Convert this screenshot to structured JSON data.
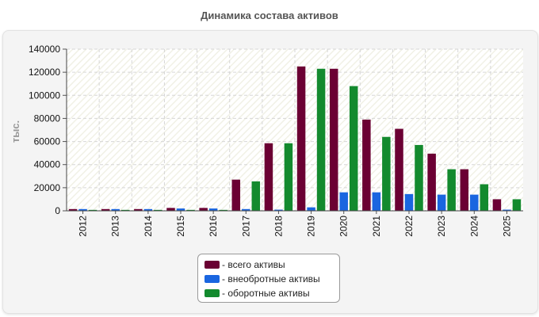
{
  "chart_data": {
    "type": "bar",
    "title": "Динамика состава активов",
    "ylabel": "тыс.",
    "xlabel": "",
    "ylim": [
      0,
      140000
    ],
    "yticks": [
      "0",
      "20000",
      "40000",
      "60000",
      "80000",
      "100000",
      "120000",
      "140000"
    ],
    "categories": [
      "2012",
      "2013",
      "2014",
      "2015",
      "2016",
      "2017",
      "2018",
      "2019",
      "2020",
      "2021",
      "2022",
      "2023",
      "2024",
      "2025"
    ],
    "series": [
      {
        "name": "всего активы",
        "color": "#6b0033",
        "values": [
          1500,
          1500,
          1500,
          2500,
          2500,
          27000,
          58500,
          125000,
          123000,
          79000,
          71000,
          49500,
          36000,
          10000
        ]
      },
      {
        "name": "внеобротные активы",
        "color": "#1a66e0",
        "values": [
          1500,
          1500,
          1500,
          2000,
          2000,
          1500,
          1000,
          3000,
          16000,
          16000,
          14500,
          14000,
          14000,
          1000
        ]
      },
      {
        "name": "оборотные активы",
        "color": "#138a2e",
        "values": [
          800,
          800,
          800,
          800,
          800,
          25500,
          58500,
          123000,
          108000,
          64000,
          57000,
          36000,
          23000,
          10000
        ]
      }
    ],
    "grid": true,
    "legend": "bottom-center"
  },
  "legend_items": [
    {
      "label": "- всего активы",
      "color": "#6b0033"
    },
    {
      "label": "- внеобротные активы",
      "color": "#1a66e0"
    },
    {
      "label": "- оборотные активы",
      "color": "#138a2e"
    }
  ]
}
